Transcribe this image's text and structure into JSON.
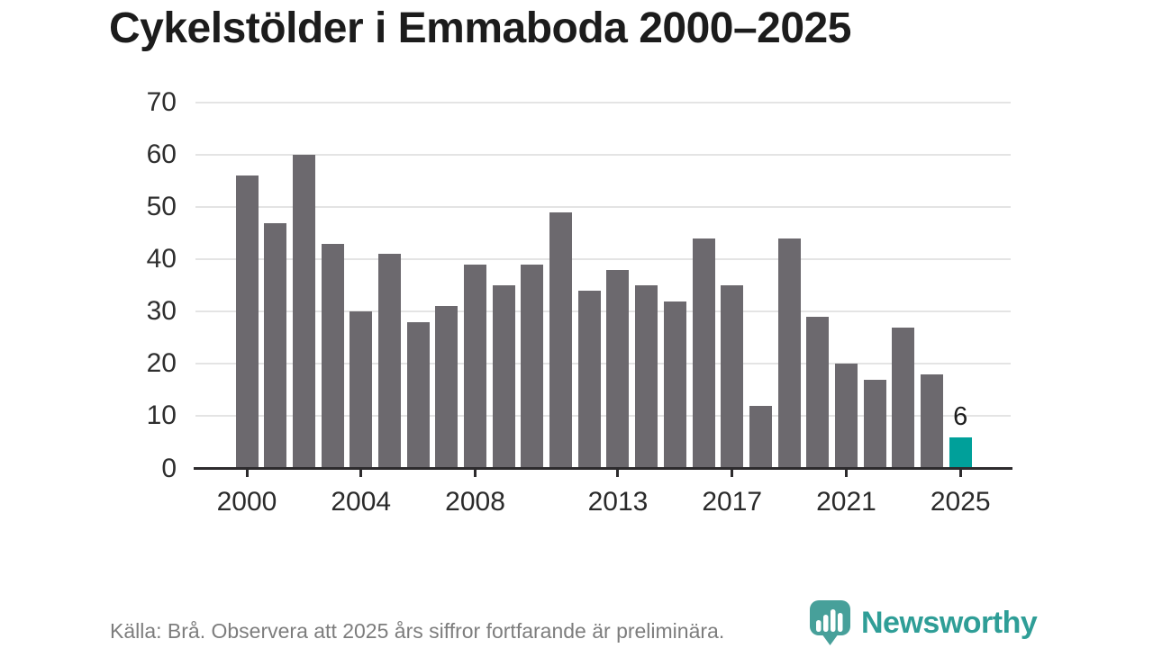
{
  "title": "Cykelstölder i Emmaboda 2000–2025",
  "chart_data": {
    "type": "bar",
    "categories": [
      "2000",
      "2001",
      "2002",
      "2003",
      "2004",
      "2005",
      "2006",
      "2007",
      "2008",
      "2009",
      "2010",
      "2011",
      "2012",
      "2013",
      "2014",
      "2015",
      "2016",
      "2017",
      "2018",
      "2019",
      "2020",
      "2021",
      "2022",
      "2023",
      "2024",
      "2025"
    ],
    "values": [
      56,
      47,
      60,
      43,
      30,
      41,
      28,
      31,
      39,
      35,
      39,
      49,
      34,
      38,
      35,
      32,
      44,
      35,
      12,
      44,
      29,
      20,
      17,
      27,
      18,
      6
    ],
    "title": "Cykelstölder i Emmaboda 2000–2025",
    "xlabel": "",
    "ylabel": "",
    "ylim": [
      0,
      70
    ],
    "yticks": [
      0,
      10,
      20,
      30,
      40,
      50,
      60,
      70
    ],
    "xticks": [
      "2000",
      "2004",
      "2008",
      "2013",
      "2017",
      "2021",
      "2025"
    ],
    "grid": true,
    "legend": "none",
    "bar_color": "#6c696e",
    "highlight": {
      "category": "2025",
      "index": 25,
      "label": "6",
      "color": "#00a09a"
    }
  },
  "footer": {
    "source_note": "Källa: Brå. Observera att 2025 års siffror fortfarande är preliminära."
  },
  "brand": {
    "name": "Newsworthy",
    "logo_icon": "bar-chart-speech-bubble-icon",
    "color": "#47a09a"
  }
}
